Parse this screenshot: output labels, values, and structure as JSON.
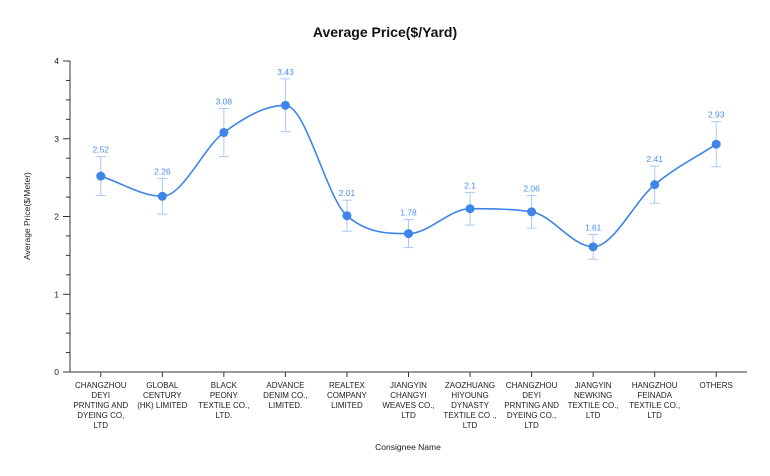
{
  "chart_data": {
    "type": "line",
    "title": "Average Price($/Yard)",
    "xlabel": "Consignee Name",
    "ylabel": "Average Price($/Meter)",
    "ylim": [
      0,
      4
    ],
    "yticks": [
      "0",
      "1",
      "2",
      "3",
      "4"
    ],
    "grid": false,
    "smooth": true,
    "categories": [
      [
        "CHANGZHOU",
        "DEYI",
        "PRNTING AND",
        "DYEING CO,",
        "LTD"
      ],
      [
        "GLOBAL",
        "CENTURY",
        "(HK) LIMITED"
      ],
      [
        "BLACK",
        "PEONY",
        "TEXTILE CO.,",
        "LTD."
      ],
      [
        "ADVANCE",
        "DENIM CO.,",
        "LIMITED."
      ],
      [
        "REALTEX",
        "COMPANY",
        "LIMITED"
      ],
      [
        "JIANGYIN",
        "CHANGYI",
        "WEAVES CO.,",
        "LTD"
      ],
      [
        "ZAOZHUANG",
        "HIYOUNG",
        "DYNASTY",
        "TEXTILE CO .,",
        "LTD"
      ],
      [
        "CHANGZHOU",
        "DEYI",
        "PRNTING AND",
        "DYEING CO.,",
        "LTD"
      ],
      [
        "JIANGYIN",
        "NEWKING",
        "TEXTILE CO.,",
        "LTD"
      ],
      [
        "HANGZHOU",
        "FEINADA",
        "TEXTILE CO.,",
        "LTD"
      ],
      [
        "OTHERS"
      ]
    ],
    "series": [
      {
        "values": [
          2.52,
          2.26,
          3.08,
          3.43,
          2.01,
          1.78,
          2.1,
          2.06,
          1.61,
          2.41,
          2.93
        ],
        "labels": [
          "2.52",
          "2.26",
          "3.08",
          "3.43",
          "2.01",
          "1.78",
          "2.1",
          "2.06",
          "1.61",
          "2.41",
          "2.93"
        ],
        "error_low": [
          2.27,
          2.03,
          2.77,
          3.09,
          1.81,
          1.6,
          1.89,
          1.85,
          1.45,
          2.17,
          2.64
        ],
        "error_high": [
          2.77,
          2.49,
          3.39,
          3.77,
          2.21,
          1.96,
          2.31,
          2.27,
          1.77,
          2.65,
          3.22
        ],
        "color": "#3d85e8",
        "error_color": "#a9c9f5"
      }
    ]
  }
}
